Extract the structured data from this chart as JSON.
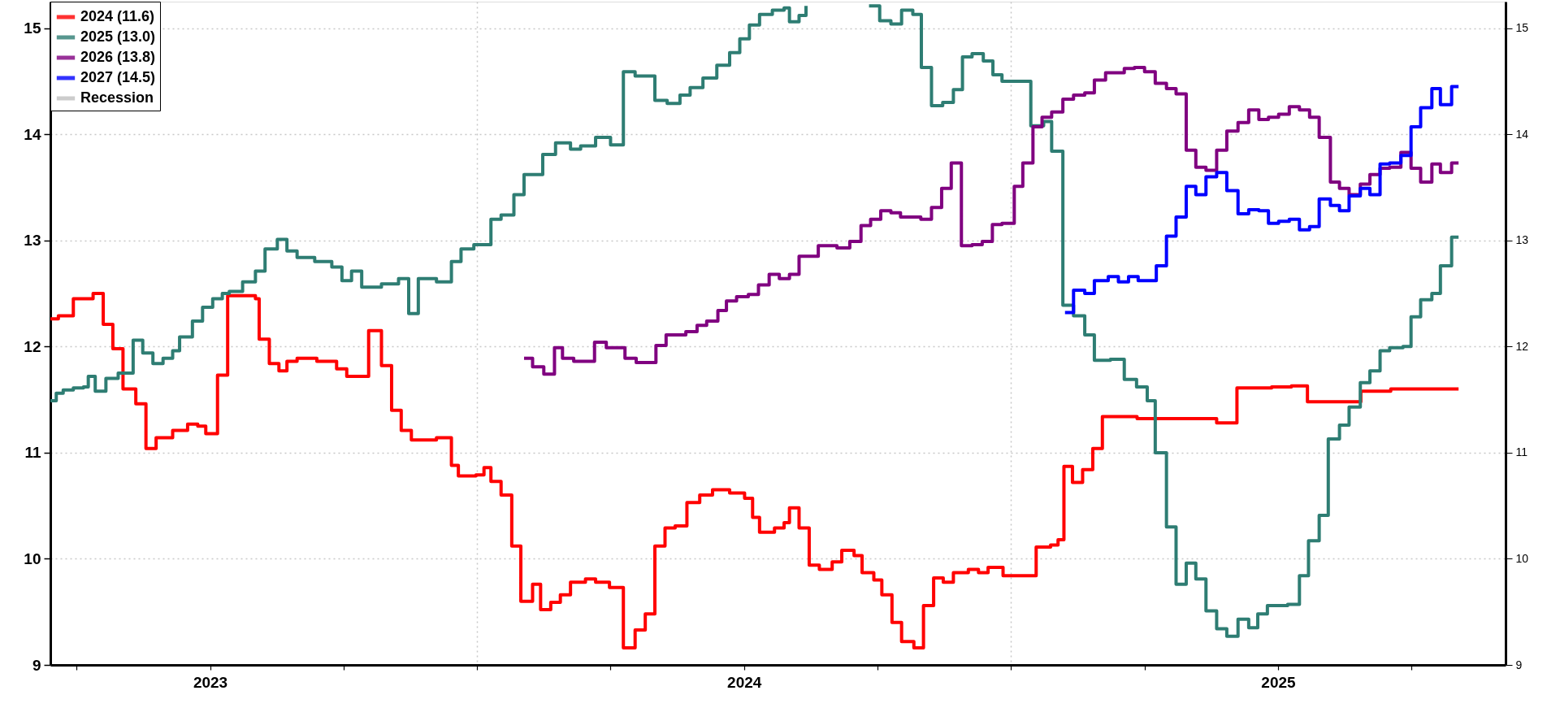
{
  "chart_data": {
    "type": "step",
    "legend": "top left",
    "grid": true,
    "xlim": [
      2023.201,
      2025.926
    ],
    "xticks": [
      {
        "value": 2023.25,
        "label": null
      },
      {
        "value": 2023.5,
        "label": "2023"
      },
      {
        "value": 2023.75,
        "label": null
      },
      {
        "value": 2024,
        "label": null
      },
      {
        "value": 2024.25,
        "label": null
      },
      {
        "value": 2024.5,
        "label": "2024"
      },
      {
        "value": 2024.75,
        "label": null
      },
      {
        "value": 2025,
        "label": null
      },
      {
        "value": 2025.25,
        "label": null
      },
      {
        "value": 2025.5,
        "label": "2025"
      },
      {
        "value": 2025.75,
        "label": null
      }
    ],
    "ylim": [
      9,
      15.25
    ],
    "yticks": [
      9,
      10,
      11,
      12,
      13,
      14,
      15
    ],
    "y2lim": [
      9,
      15.25
    ],
    "y2ticks": [
      9,
      10,
      11,
      12,
      13,
      14,
      15
    ],
    "series": [
      {
        "name": "2024 (11.6)",
        "color": "#ff0000",
        "x": [
          2023.201,
          2023.216,
          2023.244,
          2023.281,
          2023.3,
          2023.318,
          2023.337,
          2023.361,
          2023.38,
          2023.399,
          2023.43,
          2023.458,
          2023.477,
          2023.492,
          2023.514,
          2023.533,
          2023.585,
          2023.592,
          2023.611,
          2023.629,
          2023.644,
          2023.663,
          2023.7,
          2023.737,
          2023.756,
          2023.797,
          2023.821,
          2023.84,
          2023.858,
          2023.877,
          2023.924,
          2023.952,
          2023.965,
          2023.998,
          2024.013,
          2024.026,
          2024.045,
          2024.065,
          2024.082,
          2024.104,
          2024.119,
          2024.138,
          2024.156,
          2024.175,
          2024.203,
          2024.222,
          2024.248,
          2024.274,
          2024.296,
          2024.315,
          2024.333,
          2024.352,
          2024.371,
          2024.393,
          2024.417,
          2024.441,
          2024.473,
          2024.501,
          2024.516,
          2024.529,
          2024.557,
          2024.575,
          2024.585,
          2024.603,
          2024.622,
          2024.641,
          2024.665,
          2024.683,
          2024.706,
          2024.721,
          2024.743,
          2024.758,
          2024.777,
          2024.795,
          2024.818,
          2024.836,
          2024.855,
          2024.873,
          2024.892,
          2024.92,
          2024.939,
          2024.957,
          2024.985,
          2025.047,
          2025.074,
          2025.088,
          2025.099,
          2025.115,
          2025.134,
          2025.153,
          2025.171,
          2025.236,
          2025.385,
          2025.423,
          2025.488,
          2025.525,
          2025.555,
          2025.655,
          2025.711,
          2025.838
        ],
        "values": [
          12.26,
          12.29,
          12.45,
          12.5,
          12.21,
          11.98,
          11.6,
          11.46,
          11.04,
          11.14,
          11.21,
          11.27,
          11.25,
          11.18,
          11.73,
          12.48,
          12.45,
          12.07,
          11.84,
          11.77,
          11.86,
          11.89,
          11.86,
          11.79,
          11.72,
          12.15,
          11.82,
          11.4,
          11.21,
          11.12,
          11.14,
          10.88,
          10.78,
          10.79,
          10.86,
          10.73,
          10.6,
          10.12,
          9.6,
          9.76,
          9.52,
          9.59,
          9.66,
          9.78,
          9.81,
          9.78,
          9.73,
          9.16,
          9.33,
          9.48,
          10.12,
          10.29,
          10.31,
          10.53,
          10.6,
          10.65,
          10.62,
          10.57,
          10.39,
          10.25,
          10.29,
          10.34,
          10.48,
          10.29,
          9.94,
          9.9,
          9.97,
          10.08,
          10.03,
          9.87,
          9.8,
          9.66,
          9.4,
          9.22,
          9.16,
          9.56,
          9.82,
          9.78,
          9.87,
          9.9,
          9.87,
          9.92,
          9.84,
          10.11,
          10.13,
          10.18,
          10.87,
          10.72,
          10.84,
          11.04,
          11.34,
          11.32,
          11.28,
          11.61,
          11.62,
          11.63,
          11.48,
          11.58,
          11.6,
          11.6
        ]
      },
      {
        "name": "2025 (13.0)",
        "color": "#2e7d73",
        "x": [
          2023.201,
          2023.212,
          2023.225,
          2023.244,
          2023.263,
          2023.272,
          2023.285,
          2023.305,
          2023.328,
          2023.356,
          2023.374,
          2023.393,
          2023.412,
          2023.43,
          2023.443,
          2023.467,
          2023.486,
          2023.505,
          2023.523,
          2023.536,
          2023.561,
          2023.585,
          2023.603,
          2023.626,
          2023.644,
          2023.663,
          2023.696,
          2023.728,
          2023.747,
          2023.765,
          2023.784,
          2023.821,
          2023.853,
          2023.872,
          2023.89,
          2023.924,
          2023.952,
          2023.97,
          2023.994,
          2024.026,
          2024.045,
          2024.069,
          2024.088,
          2024.123,
          2024.147,
          2024.175,
          2024.194,
          2024.222,
          2024.25,
          2024.274,
          2024.296,
          2024.333,
          2024.356,
          2024.38,
          2024.399,
          2024.423,
          2024.449,
          2024.473,
          2024.492,
          2024.51,
          2024.529,
          2024.553,
          2024.575,
          2024.585,
          2024.603,
          2024.616,
          2024.628,
          2024.734,
          2024.754,
          2024.775,
          2024.795,
          2024.816,
          2024.832,
          2024.851,
          2024.872,
          2024.892,
          2024.909,
          2024.927,
          2024.948,
          2024.966,
          2024.983,
          2025.037,
          2025.061,
          2025.076,
          2025.097,
          2025.117,
          2025.138,
          2025.156,
          2025.186,
          2025.212,
          2025.235,
          2025.255,
          2025.27,
          2025.291,
          2025.309,
          2025.328,
          2025.346,
          2025.365,
          2025.385,
          2025.404,
          2025.425,
          2025.445,
          2025.462,
          2025.48,
          2025.518,
          2025.54,
          2025.557,
          2025.577,
          2025.594,
          2025.615,
          2025.633,
          2025.654,
          2025.672,
          2025.691,
          2025.709,
          2025.734,
          2025.749,
          2025.767,
          2025.788,
          2025.804,
          2025.825,
          2025.838
        ],
        "values": [
          11.49,
          11.56,
          11.59,
          11.61,
          11.62,
          11.72,
          11.58,
          11.7,
          11.75,
          12.06,
          11.94,
          11.84,
          11.89,
          11.96,
          12.09,
          12.24,
          12.37,
          12.45,
          12.5,
          12.52,
          12.61,
          12.71,
          12.92,
          13.01,
          12.9,
          12.84,
          12.8,
          12.75,
          12.62,
          12.71,
          12.56,
          12.59,
          12.64,
          12.31,
          12.64,
          12.61,
          12.8,
          12.92,
          12.96,
          13.2,
          13.24,
          13.43,
          13.62,
          13.81,
          13.92,
          13.86,
          13.89,
          13.97,
          13.9,
          14.59,
          14.55,
          14.32,
          14.29,
          14.37,
          14.44,
          14.53,
          14.65,
          14.77,
          14.9,
          15.03,
          15.13,
          15.17,
          15.19,
          15.06,
          15.12,
          15.21,
          null,
          15.21,
          15.07,
          15.04,
          15.17,
          15.13,
          14.63,
          14.27,
          14.3,
          14.42,
          14.73,
          14.76,
          14.69,
          14.56,
          14.5,
          14.08,
          14.12,
          13.84,
          12.39,
          12.29,
          12.11,
          11.87,
          11.88,
          11.69,
          11.62,
          11.49,
          11.0,
          10.3,
          9.76,
          9.96,
          9.81,
          9.51,
          9.34,
          9.27,
          9.43,
          9.35,
          9.48,
          9.56,
          9.57,
          9.84,
          10.17,
          10.41,
          11.13,
          11.26,
          11.43,
          11.66,
          11.77,
          11.96,
          11.99,
          12.0,
          12.28,
          12.44,
          12.5,
          12.76,
          13.03,
          13.03
        ]
      },
      {
        "name": "2026 (13.8)",
        "color": "#800080",
        "x": [
          2024.088,
          2024.104,
          2024.125,
          2024.145,
          2024.16,
          2024.181,
          2024.22,
          2024.242,
          2024.277,
          2024.298,
          2024.335,
          2024.354,
          2024.391,
          2024.412,
          2024.43,
          2024.451,
          2024.467,
          2024.486,
          2024.508,
          2024.527,
          2024.547,
          2024.566,
          2024.585,
          2024.603,
          2024.639,
          2024.674,
          2024.698,
          2024.719,
          2024.737,
          2024.756,
          2024.775,
          2024.793,
          2024.831,
          2024.851,
          2024.87,
          2024.888,
          2024.907,
          2024.927,
          2024.946,
          2024.965,
          2024.983,
          2025.006,
          2025.022,
          2025.041,
          2025.058,
          2025.076,
          2025.097,
          2025.117,
          2025.138,
          2025.156,
          2025.177,
          2025.212,
          2025.231,
          2025.25,
          2025.27,
          2025.291,
          2025.309,
          2025.328,
          2025.346,
          2025.365,
          2025.385,
          2025.404,
          2025.425,
          2025.445,
          2025.464,
          2025.482,
          2025.501,
          2025.521,
          2025.54,
          2025.559,
          2025.577,
          2025.598,
          2025.615,
          2025.633,
          2025.654,
          2025.672,
          2025.691,
          2025.709,
          2025.73,
          2025.749,
          2025.767,
          2025.788,
          2025.804,
          2025.825,
          2025.838
        ],
        "values": [
          11.89,
          11.81,
          11.74,
          11.99,
          11.89,
          11.86,
          12.04,
          11.99,
          11.89,
          11.85,
          12.01,
          12.11,
          12.14,
          12.2,
          12.24,
          12.34,
          12.43,
          12.47,
          12.49,
          12.58,
          12.68,
          12.64,
          12.68,
          12.85,
          12.95,
          12.93,
          12.99,
          13.14,
          13.2,
          13.28,
          13.26,
          13.22,
          13.2,
          13.31,
          13.49,
          13.73,
          12.95,
          12.96,
          12.99,
          13.15,
          13.16,
          13.51,
          13.73,
          14.07,
          14.16,
          14.21,
          14.33,
          14.37,
          14.39,
          14.51,
          14.58,
          14.62,
          14.63,
          14.59,
          14.48,
          14.43,
          14.38,
          13.85,
          13.69,
          13.66,
          13.85,
          14.03,
          14.11,
          14.23,
          14.14,
          14.16,
          14.19,
          14.26,
          14.23,
          14.16,
          13.97,
          13.55,
          13.49,
          13.43,
          13.53,
          13.62,
          13.68,
          13.69,
          13.83,
          13.68,
          13.55,
          13.72,
          13.64,
          13.73,
          13.73
        ]
      },
      {
        "name": "2027 (14.5)",
        "color": "#0000ff",
        "x": [
          2025.101,
          2025.117,
          2025.138,
          2025.156,
          2025.182,
          2025.201,
          2025.22,
          2025.238,
          2025.272,
          2025.291,
          2025.309,
          2025.328,
          2025.346,
          2025.365,
          2025.385,
          2025.404,
          2025.425,
          2025.445,
          2025.464,
          2025.482,
          2025.501,
          2025.521,
          2025.54,
          2025.559,
          2025.577,
          2025.598,
          2025.615,
          2025.633,
          2025.654,
          2025.672,
          2025.691,
          2025.709,
          2025.73,
          2025.749,
          2025.767,
          2025.788,
          2025.804,
          2025.825,
          2025.838
        ],
        "values": [
          12.32,
          12.53,
          12.5,
          12.62,
          12.66,
          12.61,
          12.66,
          12.62,
          12.76,
          13.04,
          13.22,
          13.51,
          13.43,
          13.6,
          13.64,
          13.47,
          13.25,
          13.29,
          13.28,
          13.16,
          13.18,
          13.2,
          13.1,
          13.13,
          13.39,
          13.33,
          13.28,
          13.42,
          13.49,
          13.43,
          13.72,
          13.73,
          13.8,
          14.07,
          14.25,
          14.43,
          14.28,
          14.45,
          14.45
        ]
      },
      {
        "name": "Recession",
        "type": "area",
        "color": "#c0c0c0"
      }
    ]
  }
}
